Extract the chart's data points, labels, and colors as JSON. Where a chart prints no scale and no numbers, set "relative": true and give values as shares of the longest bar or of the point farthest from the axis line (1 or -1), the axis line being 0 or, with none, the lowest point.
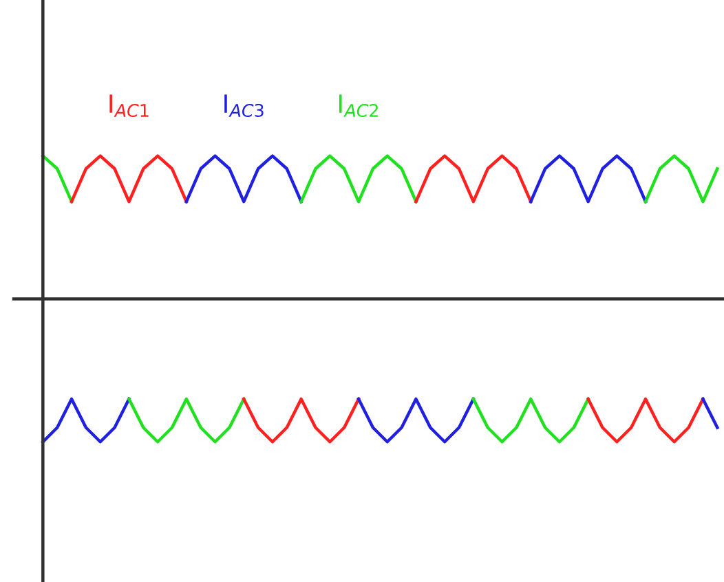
{
  "chart_data": {
    "type": "line",
    "relative": true,
    "grid": false,
    "legend": false,
    "line_style": "solid",
    "marker": "none",
    "categories": [
      null,
      null,
      null,
      null,
      null,
      null,
      null,
      null,
      null,
      null,
      null,
      null,
      null,
      null,
      null,
      null,
      null,
      null,
      null,
      null,
      null,
      null,
      null,
      null,
      null,
      null,
      null,
      null,
      null,
      null,
      null,
      null,
      null,
      null,
      null,
      null,
      null,
      null,
      null,
      null,
      null,
      null,
      null,
      null,
      null,
      null,
      null,
      null
    ],
    "series": [
      {
        "color": "#20e020",
        "values": [
          1.0,
          0.91,
          0.68,
          null,
          null,
          null,
          null,
          null,
          null,
          null,
          null,
          null,
          null,
          null,
          null,
          null,
          null,
          null,
          null,
          null,
          null,
          null,
          null,
          null,
          null,
          null,
          null,
          null,
          null,
          null,
          null,
          null,
          null,
          null,
          null,
          null,
          null,
          null,
          null,
          null,
          null,
          null,
          null,
          null,
          null,
          null,
          null,
          null
        ]
      },
      {
        "name": "I$_{AC1}$",
        "color": "#ff2020",
        "values": [
          null,
          null,
          0.68,
          0.91,
          1.0,
          0.91,
          0.68,
          0.91,
          1.0,
          0.91,
          0.68,
          null,
          null,
          null,
          null,
          null,
          null,
          null,
          null,
          null,
          null,
          null,
          null,
          null,
          null,
          null,
          null,
          null,
          null,
          null,
          null,
          null,
          null,
          null,
          null,
          null,
          null,
          null,
          null,
          null,
          null,
          null,
          null,
          null,
          null,
          null,
          null,
          null
        ]
      },
      {
        "name": "I$_{AC3}$",
        "color": "#2020e0",
        "values": [
          null,
          null,
          null,
          null,
          null,
          null,
          null,
          null,
          null,
          null,
          0.68,
          0.91,
          1.0,
          0.91,
          0.68,
          0.91,
          1.0,
          0.91,
          0.68,
          null,
          null,
          null,
          null,
          null,
          null,
          null,
          null,
          null,
          null,
          null,
          null,
          null,
          null,
          null,
          null,
          null,
          null,
          null,
          null,
          null,
          null,
          null,
          null,
          null,
          null,
          null,
          null,
          null
        ]
      },
      {
        "name": "I$_{AC2}$",
        "color": "#20e020",
        "values": [
          null,
          null,
          null,
          null,
          null,
          null,
          null,
          null,
          null,
          null,
          null,
          null,
          null,
          null,
          null,
          null,
          null,
          null,
          0.68,
          0.91,
          1.0,
          0.91,
          0.68,
          0.91,
          1.0,
          0.91,
          0.68,
          null,
          null,
          null,
          null,
          null,
          null,
          null,
          null,
          null,
          null,
          null,
          null,
          null,
          null,
          null,
          null,
          null,
          null,
          null,
          null,
          null
        ]
      },
      {
        "color": "#ff2020",
        "values": [
          null,
          null,
          null,
          null,
          null,
          null,
          null,
          null,
          null,
          null,
          null,
          null,
          null,
          null,
          null,
          null,
          null,
          null,
          null,
          null,
          null,
          null,
          null,
          null,
          null,
          null,
          0.68,
          0.91,
          1.0,
          0.91,
          0.68,
          0.91,
          1.0,
          0.91,
          0.68,
          null,
          null,
          null,
          null,
          null,
          null,
          null,
          null,
          null,
          null,
          null,
          null,
          null
        ]
      },
      {
        "color": "#2020e0",
        "values": [
          null,
          null,
          null,
          null,
          null,
          null,
          null,
          null,
          null,
          null,
          null,
          null,
          null,
          null,
          null,
          null,
          null,
          null,
          null,
          null,
          null,
          null,
          null,
          null,
          null,
          null,
          null,
          null,
          null,
          null,
          null,
          null,
          null,
          null,
          0.68,
          0.91,
          1.0,
          0.91,
          0.68,
          0.91,
          1.0,
          0.91,
          0.68,
          null,
          null,
          null,
          null,
          null
        ]
      },
      {
        "color": "#20e020",
        "values": [
          null,
          null,
          null,
          null,
          null,
          null,
          null,
          null,
          null,
          null,
          null,
          null,
          null,
          null,
          null,
          null,
          null,
          null,
          null,
          null,
          null,
          null,
          null,
          null,
          null,
          null,
          null,
          null,
          null,
          null,
          null,
          null,
          null,
          null,
          null,
          null,
          null,
          null,
          null,
          null,
          null,
          null,
          0.68,
          0.91,
          1.0,
          0.91,
          0.68,
          0.91
        ]
      },
      {
        "color": "#2020e0",
        "values": [
          -1.0,
          -0.9,
          -0.7,
          -0.9,
          -1.0,
          -0.9,
          -0.7,
          null,
          null,
          null,
          null,
          null,
          null,
          null,
          null,
          null,
          null,
          null,
          null,
          null,
          null,
          null,
          null,
          null,
          null,
          null,
          null,
          null,
          null,
          null,
          null,
          null,
          null,
          null,
          null,
          null,
          null,
          null,
          null,
          null,
          null,
          null,
          null,
          null,
          null,
          null,
          null,
          null
        ]
      },
      {
        "color": "#20e020",
        "values": [
          null,
          null,
          null,
          null,
          null,
          null,
          -0.7,
          -0.9,
          -1.0,
          -0.9,
          -0.7,
          -0.9,
          -1.0,
          -0.9,
          -0.7,
          null,
          null,
          null,
          null,
          null,
          null,
          null,
          null,
          null,
          null,
          null,
          null,
          null,
          null,
          null,
          null,
          null,
          null,
          null,
          null,
          null,
          null,
          null,
          null,
          null,
          null,
          null,
          null,
          null,
          null,
          null,
          null,
          null
        ]
      },
      {
        "color": "#ff2020",
        "values": [
          null,
          null,
          null,
          null,
          null,
          null,
          null,
          null,
          null,
          null,
          null,
          null,
          null,
          null,
          -0.7,
          -0.9,
          -1.0,
          -0.9,
          -0.7,
          -0.9,
          -1.0,
          -0.9,
          -0.7,
          null,
          null,
          null,
          null,
          null,
          null,
          null,
          null,
          null,
          null,
          null,
          null,
          null,
          null,
          null,
          null,
          null,
          null,
          null,
          null,
          null,
          null,
          null,
          null,
          null
        ]
      },
      {
        "color": "#2020e0",
        "values": [
          null,
          null,
          null,
          null,
          null,
          null,
          null,
          null,
          null,
          null,
          null,
          null,
          null,
          null,
          null,
          null,
          null,
          null,
          null,
          null,
          null,
          null,
          -0.7,
          -0.9,
          -1.0,
          -0.9,
          -0.7,
          -0.9,
          -1.0,
          -0.9,
          -0.7,
          null,
          null,
          null,
          null,
          null,
          null,
          null,
          null,
          null,
          null,
          null,
          null,
          null,
          null,
          null,
          null,
          null
        ]
      },
      {
        "color": "#20e020",
        "values": [
          null,
          null,
          null,
          null,
          null,
          null,
          null,
          null,
          null,
          null,
          null,
          null,
          null,
          null,
          null,
          null,
          null,
          null,
          null,
          null,
          null,
          null,
          null,
          null,
          null,
          null,
          null,
          null,
          null,
          null,
          -0.7,
          -0.9,
          -1.0,
          -0.9,
          -0.7,
          -0.9,
          -1.0,
          -0.9,
          -0.7,
          null,
          null,
          null,
          null,
          null,
          null,
          null,
          null,
          null
        ]
      },
      {
        "color": "#ff2020",
        "values": [
          null,
          null,
          null,
          null,
          null,
          null,
          null,
          null,
          null,
          null,
          null,
          null,
          null,
          null,
          null,
          null,
          null,
          null,
          null,
          null,
          null,
          null,
          null,
          null,
          null,
          null,
          null,
          null,
          null,
          null,
          null,
          null,
          null,
          null,
          null,
          null,
          null,
          null,
          -0.7,
          -0.9,
          -1.0,
          -0.9,
          -0.7,
          -0.9,
          -1.0,
          -0.9,
          -0.7,
          null
        ]
      },
      {
        "color": "#2020e0",
        "values": [
          null,
          null,
          null,
          null,
          null,
          null,
          null,
          null,
          null,
          null,
          null,
          null,
          null,
          null,
          null,
          null,
          null,
          null,
          null,
          null,
          null,
          null,
          null,
          null,
          null,
          null,
          null,
          null,
          null,
          null,
          null,
          null,
          null,
          null,
          null,
          null,
          null,
          null,
          null,
          null,
          null,
          null,
          null,
          null,
          null,
          null,
          -0.7,
          -0.9
        ]
      }
    ]
  }
}
